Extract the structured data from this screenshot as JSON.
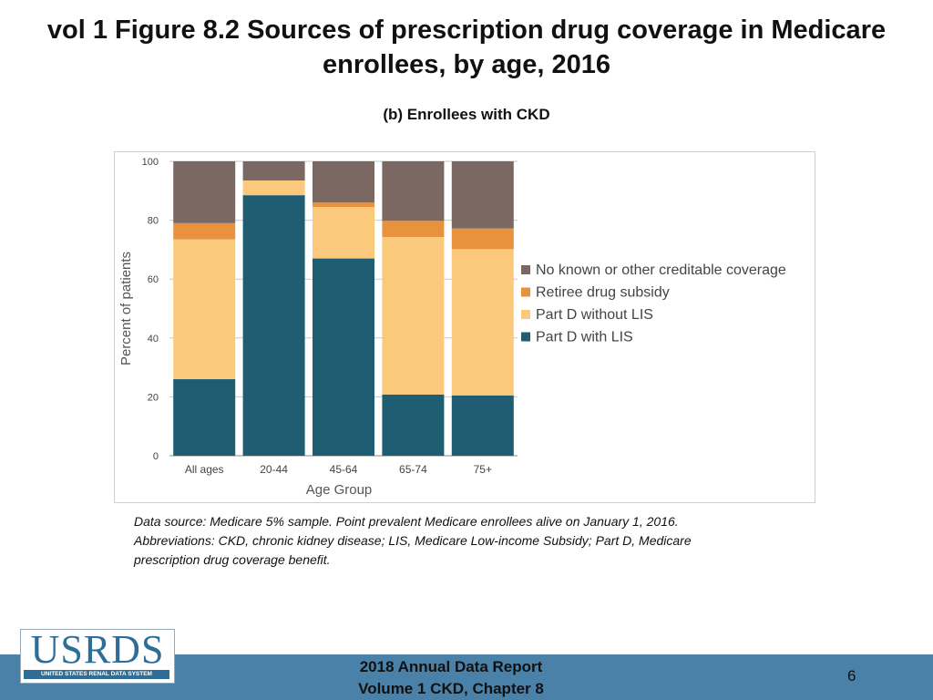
{
  "header": {
    "title": "vol 1 Figure 8.2 Sources of prescription drug coverage in Medicare enrollees, by age, 2016",
    "subtitle": "(b) Enrollees with CKD"
  },
  "chart_data": {
    "type": "bar",
    "stacked": true,
    "title": "(b) Enrollees with CKD",
    "xlabel": "Age Group",
    "ylabel": "Percent of patients",
    "ylim": [
      0,
      100
    ],
    "yticks": [
      0,
      20,
      40,
      60,
      80,
      100
    ],
    "categories": [
      "All ages",
      "20-44",
      "45-64",
      "65-74",
      "75+"
    ],
    "series": [
      {
        "name": "Part D with LIS",
        "color": "#1f5d73",
        "values": [
          26.0,
          88.5,
          67.0,
          20.8,
          20.5
        ]
      },
      {
        "name": "Part D without LIS",
        "color": "#fbc97c",
        "values": [
          47.5,
          5.0,
          17.5,
          53.5,
          49.7
        ]
      },
      {
        "name": "Retiree drug subsidy",
        "color": "#e8923d",
        "values": [
          5.5,
          0.0,
          1.5,
          5.5,
          7.0
        ]
      },
      {
        "name": "No known or other creditable coverage",
        "color": "#7c6862",
        "values": [
          21.0,
          6.5,
          14.0,
          20.2,
          22.8
        ]
      }
    ],
    "legend_order": [
      "No known or other creditable coverage",
      "Retiree drug subsidy",
      "Part D without LIS",
      "Part D with LIS"
    ],
    "legend_position": "right"
  },
  "notes": {
    "source_line1": "Data source: Medicare 5% sample. Point prevalent Medicare enrollees alive on January 1, 2016.",
    "source_line2": "Abbreviations: CKD, chronic kidney disease; LIS, Medicare Low-income Subsidy; Part D, Medicare",
    "source_line3": "prescription drug coverage benefit."
  },
  "footer": {
    "report_line1": "2018 Annual Data Report",
    "report_line2": "Volume 1 CKD, Chapter 8",
    "page_number": "6",
    "logo_text": "USRDS",
    "logo_subtext": "UNITED STATES RENAL DATA SYSTEM"
  }
}
